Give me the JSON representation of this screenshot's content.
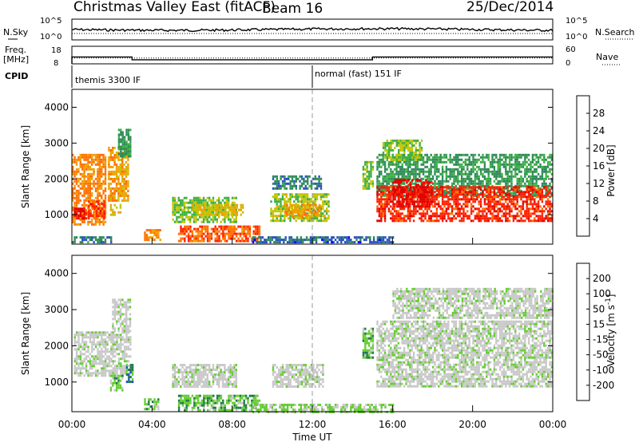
{
  "header": {
    "title": "Christmas Valley East (fitACF)",
    "beam": "Beam 16",
    "date": "25/Dec/2014"
  },
  "noise_panel": {
    "left_label": "N.Sky",
    "right_label": "N.Search",
    "left_ticks": [
      "10^5",
      "10^0"
    ],
    "right_ticks": [
      "10^5",
      "10^0"
    ]
  },
  "freq_panel": {
    "left_label_1": "Freq.",
    "left_label_2": "[MHz]",
    "right_label": "Nave",
    "left_ticks": [
      "18",
      "8"
    ],
    "right_ticks": [
      "60",
      "0"
    ],
    "freq_steps": [
      {
        "t0": 0,
        "t1": 3.0,
        "mhz": 11.9
      },
      {
        "t0": 3.0,
        "t1": 15.0,
        "mhz": 10.3
      },
      {
        "t0": 15.0,
        "t1": 24,
        "mhz": 11.9
      }
    ],
    "nave_level": 0.33
  },
  "cpid": {
    "label": "CPID",
    "modes": [
      {
        "start": "00:00",
        "name": "themis 3300 IF"
      },
      {
        "start": "12:00",
        "name": "normal (fast) 151 IF"
      }
    ]
  },
  "colors": {
    "power": [
      "#0000ff",
      "#2a52be",
      "#2e8b57",
      "#3cb043",
      "#c2c400",
      "#f0a000",
      "#ff7000",
      "#ff2000",
      "#e00000"
    ],
    "velocity": [
      "#0000ff",
      "#2050d0",
      "#1f7a4a",
      "#66cc33",
      "#c8c8c8",
      "#c8c8c8",
      "#ff9900",
      "#ff5000",
      "#ff0000"
    ],
    "grey_band": "#c0c0c0"
  },
  "chart_data": [
    {
      "type": "heatmap",
      "name": "power",
      "ylabel": "Slant Range [km]",
      "ylim": [
        180,
        4500
      ],
      "yticks": [
        1000,
        2000,
        3000,
        4000
      ],
      "xlim": [
        0,
        24
      ],
      "colorbar_label": "Power [dB]",
      "colorbar_ticks": [
        "28",
        "24",
        "20",
        "16",
        "12",
        "8",
        "4"
      ],
      "colorbar_range": [
        0,
        32
      ],
      "regions": [
        {
          "t0": 0.0,
          "t1": 1.7,
          "r0": 700,
          "r1": 2700,
          "value": 22
        },
        {
          "t0": 0.1,
          "t1": 0.7,
          "r0": 900,
          "r1": 1200,
          "value": 30
        },
        {
          "t0": 0.8,
          "t1": 1.6,
          "r0": 900,
          "r1": 1400,
          "value": 26
        },
        {
          "t0": 1.8,
          "t1": 2.8,
          "r0": 1400,
          "r1": 2900,
          "value": 20
        },
        {
          "t0": 2.3,
          "t1": 2.9,
          "r0": 2600,
          "r1": 3400,
          "value": 10
        },
        {
          "t0": 1.9,
          "t1": 2.4,
          "r0": 1000,
          "r1": 1300,
          "value": 18
        },
        {
          "t0": 3.6,
          "t1": 4.4,
          "r0": 300,
          "r1": 600,
          "value": 22
        },
        {
          "t0": 5.0,
          "t1": 8.2,
          "r0": 800,
          "r1": 1500,
          "value": 14
        },
        {
          "t0": 5.3,
          "t1": 9.4,
          "r0": 250,
          "r1": 700,
          "value": 24
        },
        {
          "t0": 6.0,
          "t1": 8.5,
          "r0": 1000,
          "r1": 1300,
          "value": 18
        },
        {
          "t0": 9.9,
          "t1": 12.8,
          "r0": 800,
          "r1": 1600,
          "value": 15
        },
        {
          "t0": 10.6,
          "t1": 12.4,
          "r0": 900,
          "r1": 1300,
          "value": 20
        },
        {
          "t0": 10.0,
          "t1": 12.4,
          "r0": 1700,
          "r1": 2100,
          "value": 8
        },
        {
          "t0": 9.0,
          "t1": 16.0,
          "r0": 200,
          "r1": 400,
          "value": 6
        },
        {
          "t0": 14.5,
          "t1": 15.0,
          "r0": 1700,
          "r1": 2500,
          "value": 14
        },
        {
          "t0": 15.2,
          "t1": 24.0,
          "r0": 1500,
          "r1": 2700,
          "value": 10
        },
        {
          "t0": 15.5,
          "t1": 17.5,
          "r0": 2500,
          "r1": 3100,
          "value": 14
        },
        {
          "t0": 15.2,
          "t1": 24.0,
          "r0": 800,
          "r1": 1800,
          "value": 27
        },
        {
          "t0": 16.0,
          "t1": 18.0,
          "r0": 1200,
          "r1": 2000,
          "value": 30
        },
        {
          "t0": 0.0,
          "t1": 2.0,
          "r0": 200,
          "r1": 400,
          "value": 8
        }
      ]
    },
    {
      "type": "heatmap",
      "name": "velocity",
      "ylabel": "Slant Range [km]",
      "ylim": [
        180,
        4500
      ],
      "yticks": [
        1000,
        2000,
        3000,
        4000
      ],
      "xlim": [
        0,
        24
      ],
      "xlabel": "Time UT",
      "xticks": [
        "00:00",
        "04:00",
        "08:00",
        "12:00",
        "16:00",
        "20:00",
        "00:00"
      ],
      "colorbar_label": "Velocity [m s^-1]",
      "colorbar_ticks": [
        "200",
        "100",
        "50",
        "15",
        "-15",
        "-50",
        "-100",
        "-200"
      ],
      "colorbar_range": [
        -250,
        250
      ],
      "regions": [
        {
          "t0": 0.1,
          "t1": 2.9,
          "r0": 1200,
          "r1": 2400,
          "value": 0
        },
        {
          "t0": 2.0,
          "t1": 2.9,
          "r0": 2400,
          "r1": 3300,
          "value": 0
        },
        {
          "t0": 1.9,
          "t1": 2.5,
          "r0": 800,
          "r1": 1200,
          "value": 60
        },
        {
          "t0": 2.7,
          "t1": 3.0,
          "r0": 1000,
          "r1": 1500,
          "value": 120
        },
        {
          "t0": 3.6,
          "t1": 4.3,
          "r0": 250,
          "r1": 550,
          "value": 60
        },
        {
          "t0": 5.0,
          "t1": 8.2,
          "r0": 900,
          "r1": 1500,
          "value": 0
        },
        {
          "t0": 5.3,
          "t1": 9.4,
          "r0": 200,
          "r1": 650,
          "value": 60
        },
        {
          "t0": 10.0,
          "t1": 12.5,
          "r0": 900,
          "r1": 1500,
          "value": 0
        },
        {
          "t0": 9.0,
          "t1": 16.0,
          "r0": 200,
          "r1": 400,
          "value": 35
        },
        {
          "t0": 14.5,
          "t1": 15.0,
          "r0": 1700,
          "r1": 2500,
          "value": 60
        },
        {
          "t0": 15.2,
          "t1": 24.0,
          "r0": 900,
          "r1": 2700,
          "value": 0
        },
        {
          "t0": 16.0,
          "t1": 24.0,
          "r0": 2800,
          "r1": 3600,
          "value": 0
        }
      ]
    }
  ]
}
